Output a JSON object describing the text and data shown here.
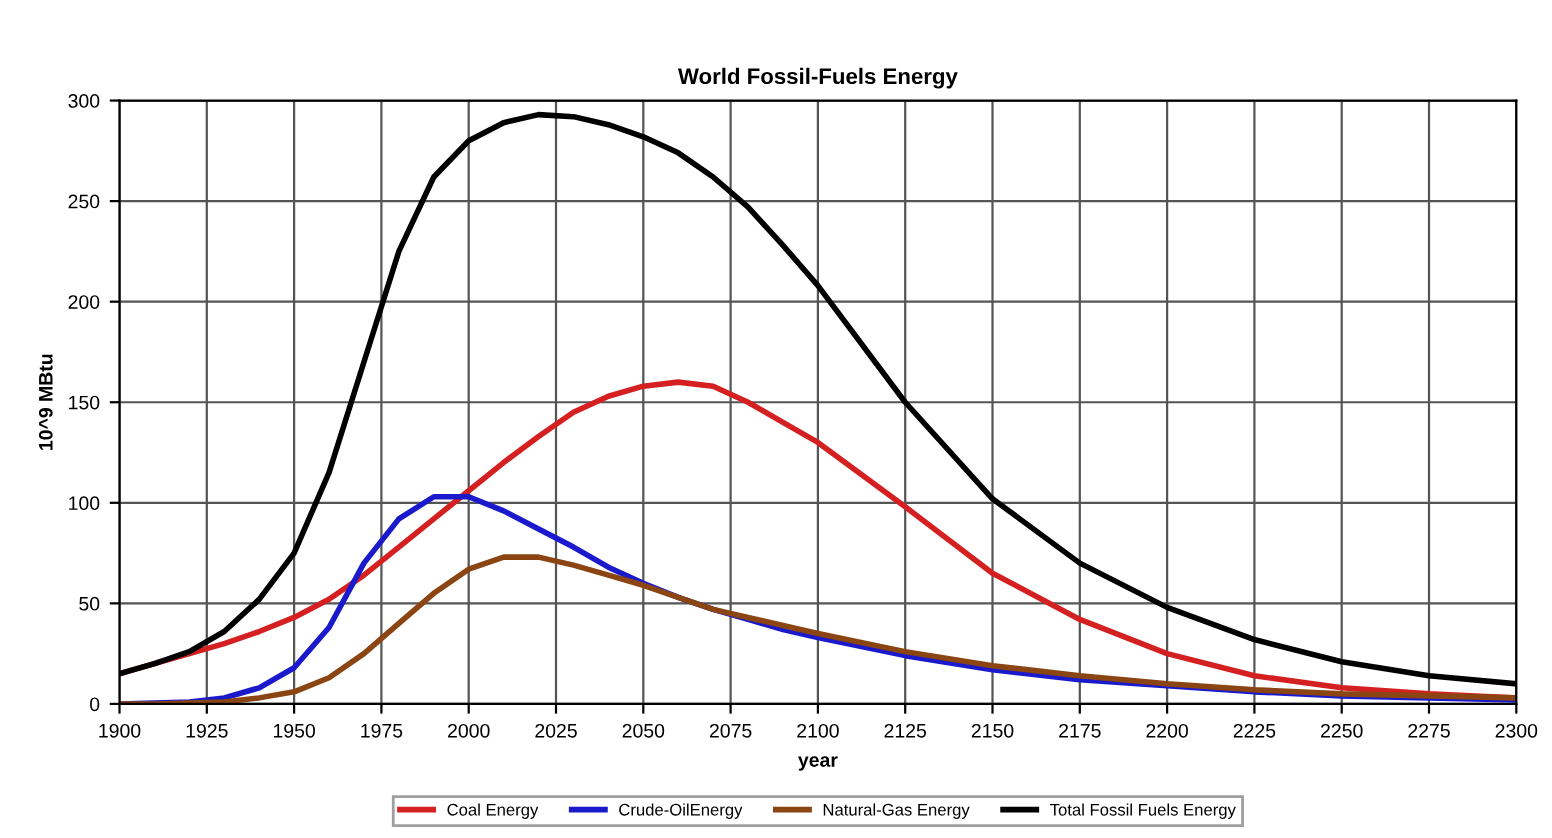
{
  "chart_data": {
    "type": "line",
    "title": "World Fossil-Fuels Energy",
    "xlabel": "year",
    "ylabel": "10^9 MBtu",
    "x": [
      1900,
      1910,
      1920,
      1930,
      1940,
      1950,
      1960,
      1970,
      1980,
      1990,
      2000,
      2010,
      2020,
      2030,
      2040,
      2050,
      2060,
      2070,
      2080,
      2090,
      2100,
      2125,
      2150,
      2175,
      2200,
      2225,
      2250,
      2275,
      2300
    ],
    "series": [
      {
        "name": "Coal Energy",
        "color": "#d42020",
        "values": [
          15,
          20,
          25,
          30,
          36,
          43,
          52,
          64,
          78,
          92,
          106,
          120,
          133,
          145,
          153,
          158,
          160,
          158,
          150,
          140,
          130,
          98,
          65,
          42,
          25,
          14,
          8,
          5,
          3
        ]
      },
      {
        "name": "Crude-OilEnergy",
        "color": "#1a1acc",
        "values": [
          0,
          0.5,
          1,
          3,
          8,
          18,
          38,
          70,
          92,
          103,
          103,
          96,
          87,
          78,
          68,
          60,
          53,
          47,
          42,
          37,
          33,
          24,
          17,
          12,
          9,
          6,
          4,
          3,
          2
        ]
      },
      {
        "name": "Natural-Gas Energy",
        "color": "#8b4513",
        "values": [
          0,
          0,
          0.5,
          1,
          3,
          6,
          13,
          25,
          40,
          55,
          67,
          73,
          73,
          69,
          64,
          59,
          53,
          47,
          43,
          39,
          35,
          26,
          19,
          14,
          10,
          7,
          5,
          4,
          3
        ]
      },
      {
        "name": "Total Fossil Fuels Energy",
        "color": "#000000",
        "values": [
          15,
          20,
          26,
          36,
          52,
          75,
          115,
          170,
          225,
          262,
          280,
          289,
          293,
          292,
          288,
          282,
          274,
          262,
          247,
          228,
          208,
          150,
          102,
          70,
          48,
          32,
          21,
          14,
          10
        ]
      }
    ],
    "xlim": [
      1900,
      2300
    ],
    "xticks": [
      1900,
      1925,
      1950,
      1975,
      2000,
      2025,
      2050,
      2075,
      2100,
      2125,
      2150,
      2175,
      2200,
      2225,
      2250,
      2275,
      2300
    ],
    "ylim": [
      0,
      300
    ],
    "yticks": [
      0,
      50,
      100,
      150,
      200,
      250,
      300
    ],
    "grid": true,
    "legend": "bottom",
    "marker": "none",
    "line_style": "solid"
  }
}
